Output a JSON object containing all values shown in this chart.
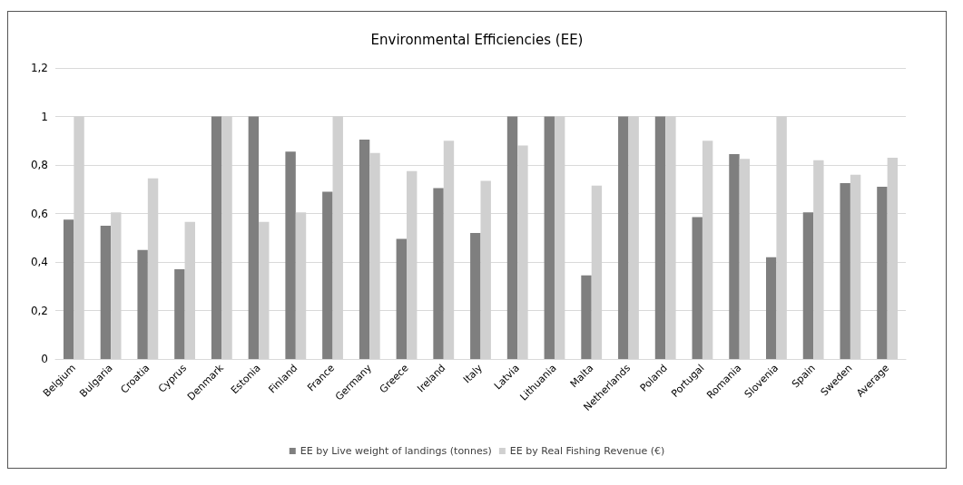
{
  "chart_data": {
    "type": "bar",
    "title": "Environmental Efficiencies (EE)",
    "categories": [
      "Belgium",
      "Bulgaria",
      "Croatia",
      "Cyprus",
      "Denmark",
      "Estonia",
      "Finland",
      "France",
      "Germany",
      "Greece",
      "Ireland",
      "Italy",
      "Latvia",
      "Lithuania",
      "Malta",
      "Netherlands",
      "Poland",
      "Portugal",
      "Romania",
      "Slovenia",
      "Spain",
      "Sweden",
      "Average"
    ],
    "series": [
      {
        "name": "EE by Live weight of landings (tonnes)",
        "color": "#7f7f7f",
        "values": [
          0.575,
          0.55,
          0.45,
          0.37,
          1,
          1,
          0.855,
          0.69,
          0.905,
          0.495,
          0.705,
          0.52,
          1,
          1,
          0.345,
          1,
          1,
          0.585,
          0.845,
          0.42,
          0.605,
          0.725,
          0.71
        ]
      },
      {
        "name": "EE by Real Fishing Revenue (€)",
        "color": "#d0d0d0",
        "values": [
          1,
          0.605,
          0.745,
          0.565,
          1,
          0.565,
          0.605,
          1,
          0.85,
          0.775,
          0.9,
          0.735,
          0.88,
          1,
          0.715,
          1,
          1,
          0.9,
          0.825,
          1,
          0.82,
          0.76,
          0.83
        ]
      }
    ],
    "ylim": [
      0,
      1.2
    ],
    "yticks": [
      0,
      {
        "value": 0.2,
        "label": "0,2"
      },
      {
        "value": 0.4,
        "label": "0,4"
      },
      {
        "value": 0.6,
        "label": "0,6"
      },
      {
        "value": 0.8,
        "label": "0,8"
      },
      1,
      {
        "value": 1.2,
        "label": "1,2"
      }
    ],
    "grid": "y",
    "legend": "bottom"
  }
}
